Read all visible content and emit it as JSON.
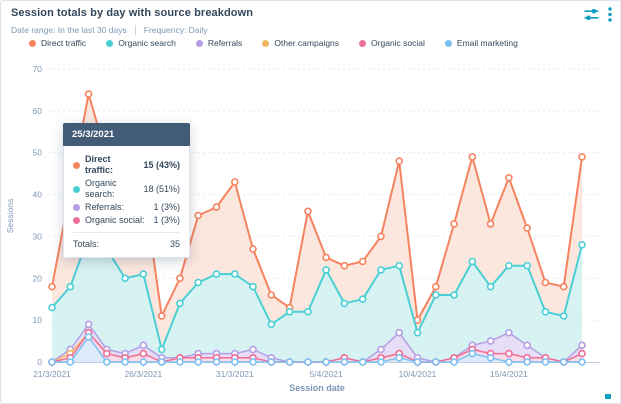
{
  "header": {
    "title": "Session totals by day with source breakdown",
    "date_range": "Date range: In the last 30 days",
    "frequency": "Frequency: Daily"
  },
  "icons": {
    "edit_chart": "sliders-icon",
    "more_options": "kebab-menu-icon",
    "color": "#0f9bc0"
  },
  "tooltip": {
    "date": "25/3/2021",
    "rows": [
      {
        "label": "Direct traffic:",
        "value": "15 (43%)",
        "color": "#f5835f",
        "bold": true
      },
      {
        "label": "Organic search:",
        "value": "18 (51%)",
        "color": "#4bcfd5",
        "bold": false
      },
      {
        "label": "Referrals:",
        "value": "1 (3%)",
        "color": "#b49fe3",
        "bold": false
      },
      {
        "label": "Organic social:",
        "value": "1 (3%)",
        "color": "#ec6f9b",
        "bold": false
      }
    ],
    "totals_label": "Totals:",
    "totals_value": "35"
  },
  "chart_data": {
    "type": "area",
    "stacked": true,
    "title": "Session totals by day with source breakdown",
    "xlabel": "Session date",
    "ylabel": "Sessions",
    "ylim": [
      0,
      70
    ],
    "yticks": [
      0,
      10,
      20,
      30,
      40,
      50,
      60,
      70
    ],
    "grid": "horizontal-dashed",
    "legend_position": "top-left",
    "xtick_indices": [
      0,
      5,
      10,
      15,
      20,
      25
    ],
    "xtick_labels": [
      "21/3/2021",
      "26/3/2021",
      "31/3/2021",
      "5/4/2021",
      "10/4/2021",
      "15/4/2021"
    ],
    "x": [
      "21/3/2021",
      "22/3/2021",
      "23/3/2021",
      "24/3/2021",
      "25/3/2021",
      "26/3/2021",
      "27/3/2021",
      "28/3/2021",
      "29/3/2021",
      "30/3/2021",
      "31/3/2021",
      "1/4/2021",
      "2/4/2021",
      "3/4/2021",
      "4/4/2021",
      "5/4/2021",
      "6/4/2021",
      "7/4/2021",
      "8/4/2021",
      "9/4/2021",
      "10/4/2021",
      "11/4/2021",
      "12/4/2021",
      "13/4/2021",
      "14/4/2021",
      "15/4/2021",
      "16/4/2021",
      "17/4/2021",
      "18/4/2021",
      "19/4/2021"
    ],
    "stack_order_bottom_to_top": [
      "Email marketing",
      "Organic social",
      "Other campaigns",
      "Referrals",
      "Organic search",
      "Direct traffic"
    ],
    "series": [
      {
        "name": "Direct traffic",
        "slug": "direct-traffic",
        "color": "#f5835f",
        "fill": "#fbe7de",
        "values": [
          5,
          23,
          34,
          22,
          15,
          21,
          8,
          6,
          16,
          16,
          22,
          9,
          7,
          1,
          24,
          3,
          9,
          9,
          8,
          25,
          3,
          2,
          17,
          25,
          15,
          21,
          9,
          7,
          7,
          21
        ]
      },
      {
        "name": "Organic search",
        "slug": "organic-search",
        "color": "#4bcfd5",
        "fill": "#d6f2f3",
        "values": [
          13,
          15,
          21,
          24,
          18,
          17,
          2,
          13,
          17,
          19,
          19,
          15,
          8,
          12,
          12,
          22,
          13,
          15,
          19,
          16,
          6,
          16,
          15,
          20,
          13,
          16,
          19,
          11,
          11,
          24
        ]
      },
      {
        "name": "Referrals",
        "slug": "referrals",
        "color": "#b49fe3",
        "fill": "#e5def6",
        "values": [
          0,
          1,
          2,
          1,
          1,
          2,
          1,
          0,
          1,
          1,
          1,
          2,
          1,
          0,
          0,
          0,
          0,
          0,
          2,
          5,
          1,
          0,
          0,
          1,
          3,
          5,
          3,
          0,
          0,
          2
        ]
      },
      {
        "name": "Other campaigns",
        "slug": "other-campaigns",
        "color": "#f2b661",
        "fill": "#fdeed8",
        "values": [
          0,
          1,
          0,
          0,
          0,
          0,
          0,
          0,
          0,
          0,
          0,
          0,
          0,
          0,
          0,
          0,
          0,
          0,
          0,
          0,
          0,
          0,
          0,
          0,
          0,
          0,
          0,
          0,
          0,
          0
        ]
      },
      {
        "name": "Organic social",
        "slug": "organic-social",
        "color": "#ec6f9b",
        "fill": "#fadbe6",
        "values": [
          0,
          1,
          1,
          2,
          1,
          2,
          0,
          1,
          1,
          1,
          1,
          1,
          0,
          0,
          0,
          0,
          1,
          0,
          1,
          1,
          0,
          0,
          1,
          1,
          1,
          2,
          1,
          1,
          0,
          2
        ]
      },
      {
        "name": "Email marketing",
        "slug": "email-marketing",
        "color": "#7cc0f1",
        "fill": "#dcebfb",
        "values": [
          0,
          0,
          6,
          0,
          0,
          0,
          0,
          0,
          0,
          0,
          0,
          0,
          0,
          0,
          0,
          0,
          0,
          0,
          0,
          1,
          0,
          0,
          0,
          2,
          1,
          0,
          0,
          0,
          0,
          0
        ]
      }
    ]
  },
  "axis_style": {
    "grid_color": "#e2e9f1",
    "axis_line_color": "#bfcfdf",
    "tick_text_color": "#7c98b6"
  }
}
